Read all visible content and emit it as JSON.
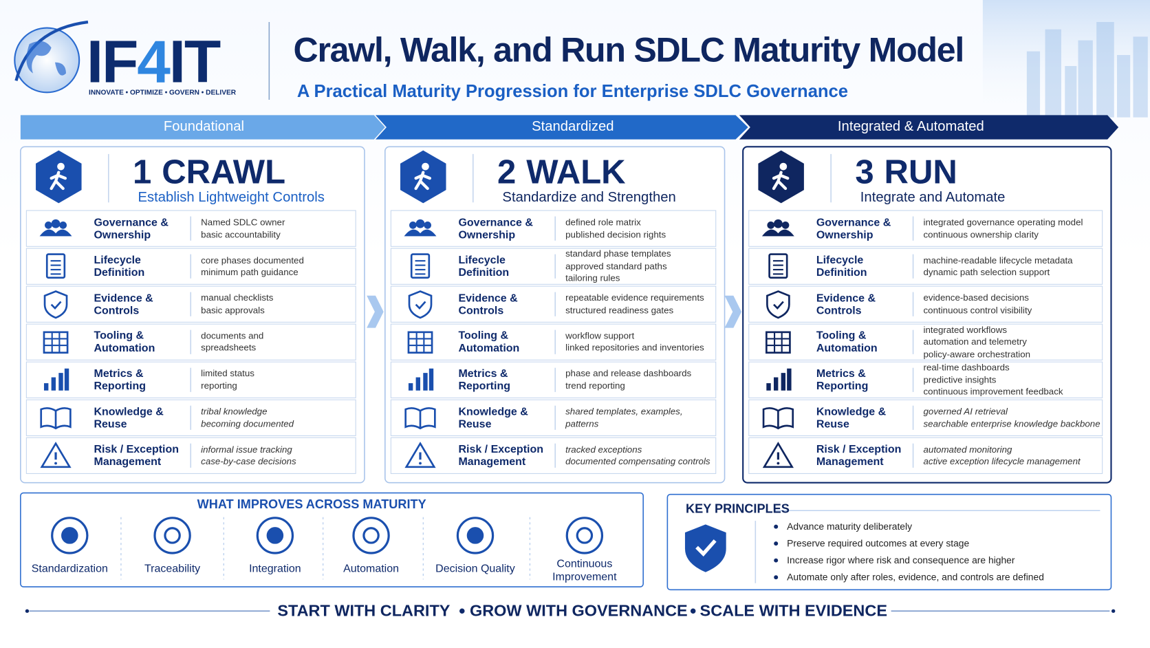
{
  "header": {
    "logo": [
      "IF",
      "4",
      "IT"
    ],
    "tagline": "INNOVATE • OPTIMIZE • GOVERN • DELIVER",
    "title": "Crawl, Walk, and Run SDLC Maturity Model",
    "subtitle": "A Practical Maturity Progression for Enterprise SDLC Governance"
  },
  "stages": [
    {
      "banner": "Foundational",
      "number": "1",
      "name": "CRAWL",
      "tagline": "Establish Lightweight Controls",
      "rows": [
        {
          "area": [
            "Governance &",
            "Ownership"
          ],
          "details": [
            "Named SDLC owner",
            "basic accountability"
          ]
        },
        {
          "area": [
            "Lifecycle",
            "Definition"
          ],
          "details": [
            "core phases documented",
            "minimum path guidance"
          ]
        },
        {
          "area": [
            "Evidence &",
            "Controls"
          ],
          "details": [
            "manual checklists",
            "basic approvals"
          ]
        },
        {
          "area": [
            "Tooling &",
            "Automation"
          ],
          "details": [
            "documents and",
            "spreadsheets"
          ]
        },
        {
          "area": [
            "Metrics &",
            "Reporting"
          ],
          "details": [
            "limited status",
            "reporting"
          ]
        },
        {
          "area": [
            "Knowledge &",
            "Reuse"
          ],
          "details": [
            "tribal knowledge",
            "becoming documented"
          ]
        },
        {
          "area": [
            "Risk / Exception",
            "Management"
          ],
          "details": [
            "informal issue tracking",
            "case-by-case decisions"
          ]
        }
      ]
    },
    {
      "banner": "Standardized",
      "number": "2",
      "name": "WALK",
      "tagline": "Standardize and Strengthen",
      "rows": [
        {
          "area": [
            "Governance &",
            "Ownership"
          ],
          "details": [
            "defined role matrix",
            "published decision rights"
          ]
        },
        {
          "area": [
            "Lifecycle",
            "Definition"
          ],
          "details": [
            "standard phase templates",
            "approved standard paths",
            "tailoring rules"
          ]
        },
        {
          "area": [
            "Evidence &",
            "Controls"
          ],
          "details": [
            "repeatable evidence requirements",
            "structured readiness gates"
          ]
        },
        {
          "area": [
            "Tooling &",
            "Automation"
          ],
          "details": [
            "workflow support",
            "linked repositories and inventories"
          ]
        },
        {
          "area": [
            "Metrics &",
            "Reporting"
          ],
          "details": [
            "phase and release dashboards",
            "trend reporting"
          ]
        },
        {
          "area": [
            "Knowledge &",
            "Reuse"
          ],
          "details": [
            "shared templates, examples,",
            "patterns"
          ]
        },
        {
          "area": [
            "Risk / Exception",
            "Management"
          ],
          "details": [
            "tracked exceptions",
            "documented compensating controls"
          ]
        }
      ]
    },
    {
      "banner": "Integrated & Automated",
      "number": "3",
      "name": "RUN",
      "tagline": "Integrate and Automate",
      "rows": [
        {
          "area": [
            "Governance &",
            "Ownership"
          ],
          "details": [
            "integrated governance operating model",
            "continuous ownership clarity"
          ]
        },
        {
          "area": [
            "Lifecycle",
            "Definition"
          ],
          "details": [
            "machine-readable lifecycle metadata",
            "dynamic path selection support"
          ]
        },
        {
          "area": [
            "Evidence &",
            "Controls"
          ],
          "details": [
            "evidence-based decisions",
            "continuous control visibility"
          ]
        },
        {
          "area": [
            "Tooling &",
            "Automation"
          ],
          "details": [
            "integrated workflows",
            "automation and telemetry",
            "policy-aware orchestration"
          ]
        },
        {
          "area": [
            "Metrics &",
            "Reporting"
          ],
          "details": [
            "real-time dashboards",
            "predictive insights",
            "continuous improvement feedback"
          ]
        },
        {
          "area": [
            "Knowledge &",
            "Reuse"
          ],
          "details": [
            "governed AI retrieval",
            "searchable enterprise knowledge backbone"
          ]
        },
        {
          "area": [
            "Risk / Exception",
            "Management"
          ],
          "details": [
            "automated monitoring",
            "active exception lifecycle management"
          ]
        }
      ]
    }
  ],
  "improvements": {
    "title": "WHAT IMPROVES ACROSS MATURITY",
    "items": [
      "Standardization",
      "Traceability",
      "Integration",
      "Automation",
      "Decision Quality",
      "Continuous Improvement"
    ]
  },
  "principles": {
    "title": "KEY PRINCIPLES",
    "items": [
      "Advance maturity deliberately",
      "Preserve required outcomes at every stage",
      "Increase rigor where risk and consequence are higher",
      "Automate only after roles, evidence, and controls are defined"
    ]
  },
  "footer": [
    "START WITH CLARITY",
    "GROW WITH GOVERNANCE",
    "SCALE WITH EVIDENCE"
  ]
}
